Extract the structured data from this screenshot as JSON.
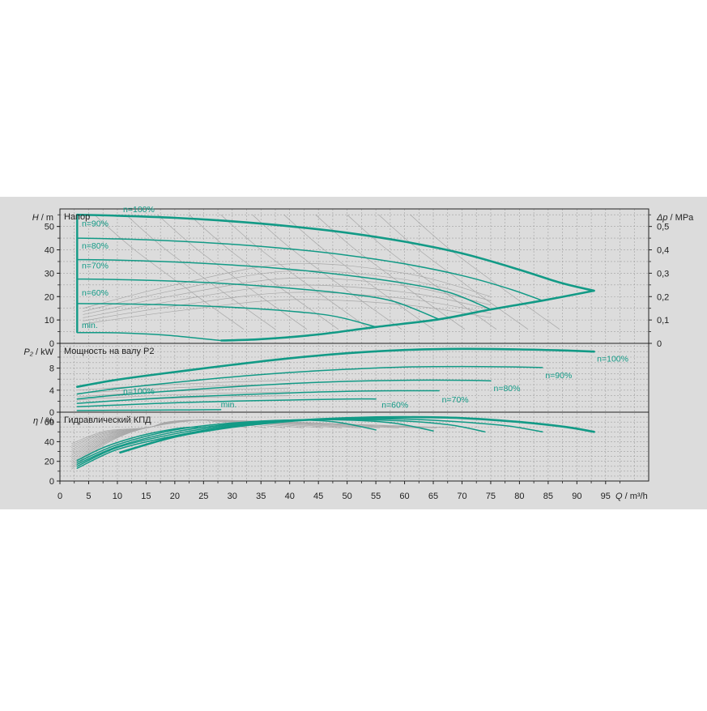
{
  "chart_data": {
    "type": "line",
    "colors": {
      "background": "#dcdcdc",
      "curve": "#129a86",
      "aux": "#a8a8a8",
      "grid": "#a0a0a0",
      "frame": "#222222"
    },
    "x": {
      "unit_q": "Q",
      "unit_rest": " / m³/h",
      "ticks": [
        0,
        5,
        10,
        15,
        20,
        25,
        30,
        35,
        40,
        45,
        50,
        55,
        60,
        65,
        70,
        75,
        80,
        85,
        90,
        95
      ],
      "range": [
        0,
        102.5
      ]
    },
    "panels": [
      {
        "key": "head",
        "title": "Напор",
        "y_unit_sym": "H",
        "y_unit_rest": " / m",
        "y_range": [
          0,
          57.5
        ],
        "y_ticks": [
          0,
          10,
          20,
          30,
          40,
          50
        ],
        "y2_unit_sym": "Δp",
        "y2_unit_rest": " / MPa",
        "y2_range": [
          0,
          0.575
        ],
        "y2_ticks": [
          0,
          0.1,
          0.2,
          0.3,
          0.4,
          0.5
        ],
        "y2_tick_labels": [
          "0",
          "0,1",
          "0,2",
          "0,3",
          "0,4",
          "0,5"
        ],
        "series": [
          {
            "name": "n=100%",
            "label_at": [
              11,
              56.2
            ],
            "points": [
              [
                3,
                55
              ],
              [
                10,
                54.6
              ],
              [
                20,
                53.7
              ],
              [
                30,
                52.2
              ],
              [
                40,
                50.1
              ],
              [
                50,
                47.3
              ],
              [
                60,
                43.5
              ],
              [
                70,
                38.5
              ],
              [
                80,
                31.5
              ],
              [
                87,
                26
              ],
              [
                93,
                22.5
              ]
            ]
          },
          {
            "name": "n=90%",
            "label_at": [
              3.8,
              50
            ],
            "points": [
              [
                3,
                45
              ],
              [
                10,
                44.7
              ],
              [
                20,
                43.8
              ],
              [
                30,
                42.4
              ],
              [
                40,
                40.4
              ],
              [
                50,
                37.7
              ],
              [
                60,
                34
              ],
              [
                70,
                29
              ],
              [
                78,
                23.5
              ],
              [
                84,
                18.3
              ]
            ]
          },
          {
            "name": "n=80%",
            "label_at": [
              3.8,
              40.5
            ],
            "points": [
              [
                3,
                35.8
              ],
              [
                10,
                35.6
              ],
              [
                20,
                34.8
              ],
              [
                30,
                33.5
              ],
              [
                40,
                31.7
              ],
              [
                50,
                29.1
              ],
              [
                60,
                25.7
              ],
              [
                68,
                21.6
              ],
              [
                75,
                14.5
              ]
            ]
          },
          {
            "name": "n=70%",
            "label_at": [
              3.8,
              32
            ],
            "points": [
              [
                3,
                27.5
              ],
              [
                10,
                27.3
              ],
              [
                20,
                26.6
              ],
              [
                30,
                25.4
              ],
              [
                40,
                23.6
              ],
              [
                50,
                21.2
              ],
              [
                58,
                18
              ],
              [
                66,
                10.3
              ]
            ]
          },
          {
            "name": "n=60%",
            "label_at": [
              3.8,
              20.5
            ],
            "points": [
              [
                3,
                17
              ],
              [
                10,
                16.9
              ],
              [
                20,
                16.4
              ],
              [
                30,
                15.4
              ],
              [
                40,
                13.8
              ],
              [
                48,
                11.5
              ],
              [
                55,
                7
              ]
            ]
          },
          {
            "name": "min.",
            "label_at": [
              3.8,
              6.5
            ],
            "points": [
              [
                3,
                4.6
              ],
              [
                10,
                4.5
              ],
              [
                18,
                3.6
              ],
              [
                24,
                2.2
              ],
              [
                28,
                1.2
              ]
            ]
          }
        ],
        "envelope": [
          [
            28,
            1.2
          ],
          [
            35,
            1.8
          ],
          [
            45,
            3.8
          ],
          [
            55,
            7
          ],
          [
            66,
            10.3
          ],
          [
            75,
            14.5
          ],
          [
            84,
            18.3
          ],
          [
            93,
            22.5
          ]
        ],
        "min_line": [
          [
            3,
            55
          ],
          [
            3,
            4.6
          ]
        ]
      },
      {
        "key": "power",
        "title": "Мощность на валу P2",
        "y_unit_sym": "P₂",
        "y_unit_rest": " / kW",
        "y_range": [
          0,
          12.5
        ],
        "y_ticks": [
          0,
          4,
          8
        ],
        "y_ticks_minor": [
          2,
          6,
          10
        ],
        "series": [
          {
            "name": "n=100%",
            "label_at": [
              93.5,
              9.2
            ],
            "points": [
              [
                3,
                4.6
              ],
              [
                10,
                5.9
              ],
              [
                20,
                7.3
              ],
              [
                30,
                8.6
              ],
              [
                40,
                9.8
              ],
              [
                50,
                10.7
              ],
              [
                60,
                11.3
              ],
              [
                70,
                11.5
              ],
              [
                80,
                11.4
              ],
              [
                88,
                11.2
              ],
              [
                93,
                11.0
              ]
            ]
          },
          {
            "name": "n=90%",
            "label_at": [
              84.5,
              6.2
            ],
            "points": [
              [
                3,
                3.3
              ],
              [
                10,
                4.3
              ],
              [
                20,
                5.4
              ],
              [
                30,
                6.4
              ],
              [
                40,
                7.2
              ],
              [
                50,
                7.8
              ],
              [
                60,
                8.2
              ],
              [
                70,
                8.3
              ],
              [
                80,
                8.2
              ],
              [
                84,
                8.1
              ]
            ]
          },
          {
            "name": "n=80%",
            "label_at": [
              75.5,
              3.8
            ],
            "points": [
              [
                3,
                2.4
              ],
              [
                10,
                3.1
              ],
              [
                20,
                3.9
              ],
              [
                30,
                4.6
              ],
              [
                40,
                5.2
              ],
              [
                50,
                5.6
              ],
              [
                60,
                5.8
              ],
              [
                70,
                5.8
              ],
              [
                75,
                5.7
              ]
            ]
          },
          {
            "name": "n=70%",
            "label_at": [
              66.5,
              1.8
            ],
            "points": [
              [
                3,
                1.6
              ],
              [
                10,
                2.1
              ],
              [
                20,
                2.7
              ],
              [
                30,
                3.1
              ],
              [
                40,
                3.5
              ],
              [
                50,
                3.8
              ],
              [
                60,
                3.9
              ],
              [
                66,
                3.9
              ]
            ]
          },
          {
            "name": "n=60%",
            "label_at": [
              56,
              0.8
            ],
            "points": [
              [
                3,
                1.0
              ],
              [
                10,
                1.3
              ],
              [
                20,
                1.7
              ],
              [
                30,
                2.0
              ],
              [
                40,
                2.2
              ],
              [
                50,
                2.4
              ],
              [
                55,
                2.4
              ]
            ]
          },
          {
            "name": "min.",
            "label_at": [
              28,
              0.9
            ],
            "points": [
              [
                3,
                0.3
              ],
              [
                10,
                0.35
              ],
              [
                20,
                0.4
              ],
              [
                28,
                0.45
              ]
            ]
          }
        ],
        "aux_label": "n=100%",
        "aux_label_at": [
          11,
          3.3
        ]
      },
      {
        "key": "eff",
        "title": "Гидравлический КПД",
        "y_unit_sym": "η",
        "y_unit_rest": " / %",
        "y_range": [
          0,
          70
        ],
        "y_ticks": [
          0,
          20,
          40,
          60
        ],
        "y_ticks_minor": [
          10,
          30,
          50
        ],
        "series": [
          {
            "name": "n=100%",
            "points": [
              [
                10.5,
                29
              ],
              [
                20,
                45
              ],
              [
                30,
                55
              ],
              [
                40,
                61
              ],
              [
                50,
                64
              ],
              [
                60,
                65
              ],
              [
                70,
                64
              ],
              [
                80,
                60
              ],
              [
                88,
                55
              ],
              [
                93,
                50
              ]
            ]
          },
          {
            "name": "n=90%",
            "points": [
              [
                3,
                13
              ],
              [
                10,
                32
              ],
              [
                20,
                46
              ],
              [
                30,
                56
              ],
              [
                40,
                61
              ],
              [
                50,
                63
              ],
              [
                60,
                63
              ],
              [
                70,
                60
              ],
              [
                78,
                56
              ],
              [
                84,
                50
              ]
            ]
          },
          {
            "name": "n=80%",
            "points": [
              [
                3,
                15
              ],
              [
                10,
                34
              ],
              [
                20,
                48
              ],
              [
                30,
                57
              ],
              [
                40,
                61.5
              ],
              [
                50,
                62.5
              ],
              [
                60,
                61
              ],
              [
                68,
                57
              ],
              [
                74,
                50
              ]
            ]
          },
          {
            "name": "n=70%",
            "points": [
              [
                3,
                17
              ],
              [
                10,
                35
              ],
              [
                20,
                50
              ],
              [
                30,
                58
              ],
              [
                40,
                62
              ],
              [
                50,
                62
              ],
              [
                58,
                59
              ],
              [
                65,
                51
              ]
            ]
          },
          {
            "name": "n=60%",
            "points": [
              [
                3,
                19
              ],
              [
                10,
                37
              ],
              [
                20,
                52
              ],
              [
                30,
                59
              ],
              [
                40,
                62
              ],
              [
                48,
                60
              ],
              [
                55,
                52
              ]
            ]
          },
          {
            "name": "min.",
            "points": [
              [
                3,
                21
              ],
              [
                8,
                35
              ],
              [
                14,
                46
              ],
              [
                20,
                53
              ],
              [
                24,
                55
              ]
            ]
          }
        ]
      }
    ]
  }
}
